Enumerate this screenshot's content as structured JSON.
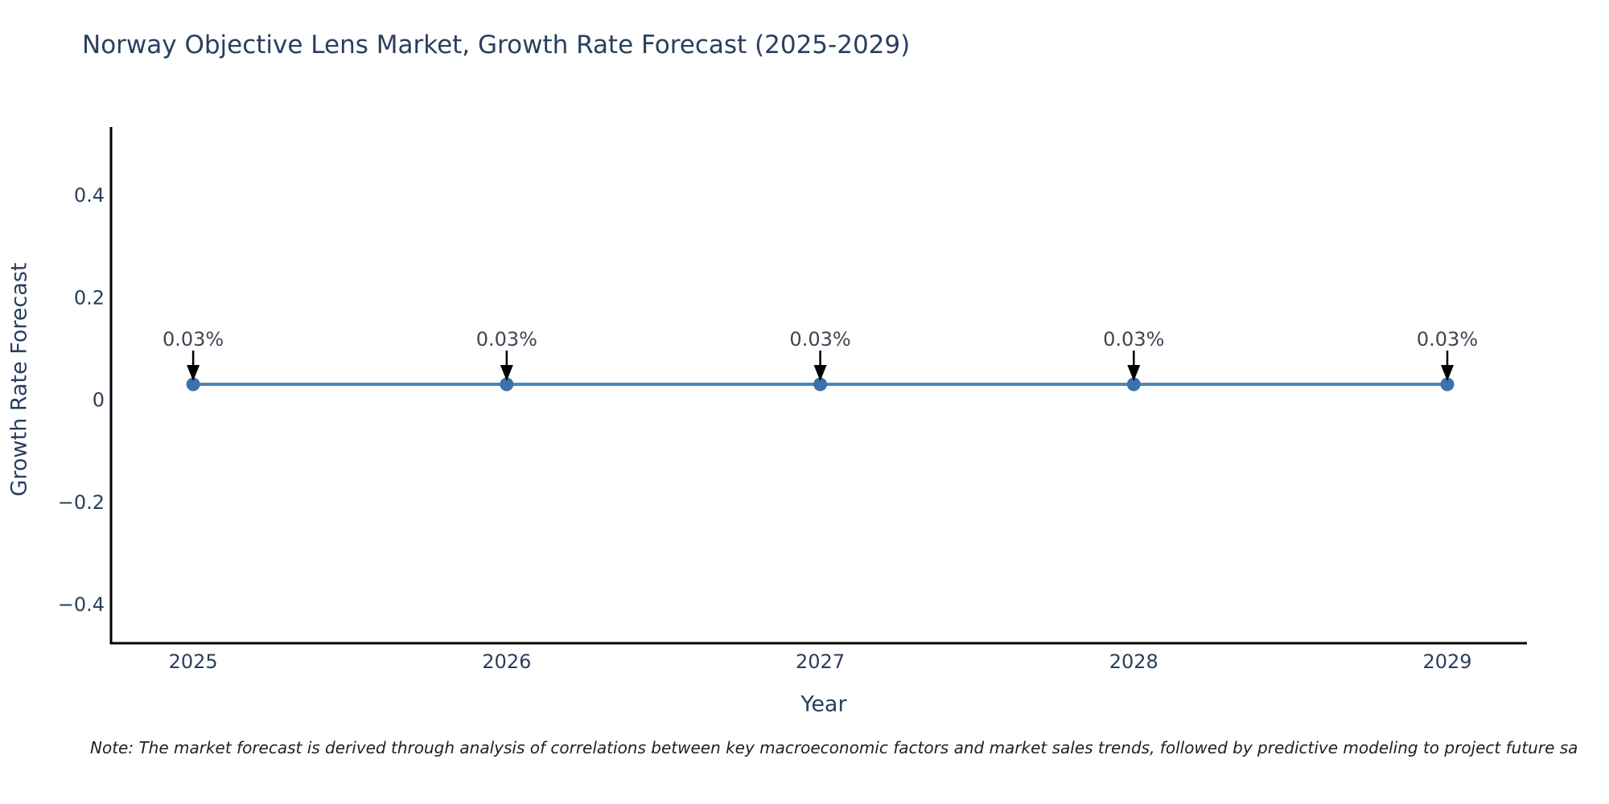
{
  "chart_data": {
    "type": "line",
    "title": "Norway Objective Lens Market, Growth Rate Forecast (2025-2029)",
    "xlabel": "Year",
    "ylabel": "Growth Rate Forecast",
    "x": [
      2025,
      2026,
      2027,
      2028,
      2029
    ],
    "series": [
      {
        "name": "Growth Rate Forecast",
        "values": [
          0.03,
          0.03,
          0.03,
          0.03,
          0.03
        ],
        "point_labels": [
          "0.03%",
          "0.03%",
          "0.03%",
          "0.03%",
          "0.03%"
        ]
      }
    ],
    "xtick_labels": [
      "2025",
      "2026",
      "2027",
      "2028",
      "2029"
    ],
    "yticks": [
      -0.4,
      -0.2,
      0,
      0.2,
      0.4
    ],
    "ytick_labels": [
      "−0.4",
      "−0.2",
      "0",
      "0.2",
      "0.4"
    ],
    "xlim": [
      2024.738,
      2029.254
    ],
    "ylim": [
      -0.476,
      0.533
    ],
    "grid": false,
    "legend": "none",
    "colors": {
      "line": "#4a86b8",
      "marker": "#3a72ab",
      "axis": "#000000",
      "text": "#2a3f5f",
      "annotation_text": "#3f4652",
      "arrow": "#000000"
    }
  },
  "footnote": "Note: The market forecast is derived through analysis of correlations between key macroeconomic factors and market sales trends, followed by predictive modeling to project future sa"
}
